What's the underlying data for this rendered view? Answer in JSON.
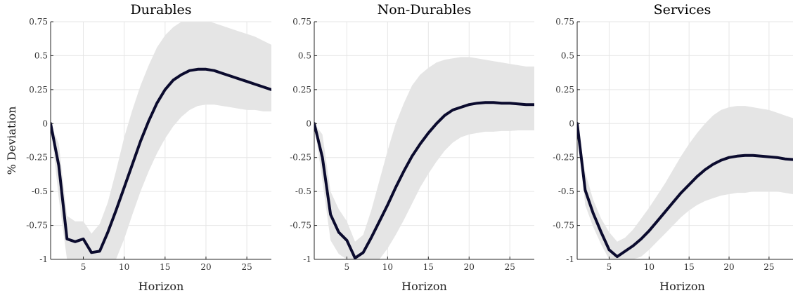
{
  "chart_data": [
    {
      "type": "line",
      "title": "Durables",
      "xlabel": "Horizon",
      "ylabel": "% Deviation",
      "xlim": [
        1,
        28
      ],
      "ylim": [
        -1,
        0.75
      ],
      "xticks": [
        5,
        10,
        15,
        20,
        25
      ],
      "xtick_labels": [
        "5",
        "10",
        "15",
        "20",
        "25"
      ],
      "yticks": [
        -1,
        -0.75,
        -0.5,
        -0.25,
        0,
        0.25,
        0.5,
        0.75
      ],
      "ytick_labels": [
        "-1",
        "-0.75",
        "-0.5",
        "-0.25",
        "0",
        "0.25",
        "0.5",
        "0.75"
      ],
      "grid": true,
      "x": [
        1,
        2,
        3,
        4,
        5,
        6,
        7,
        8,
        9,
        10,
        11,
        12,
        13,
        14,
        15,
        16,
        17,
        18,
        19,
        20,
        21,
        22,
        23,
        24,
        25,
        26,
        27,
        28
      ],
      "series": [
        {
          "values": [
            0,
            -0.31,
            -0.85,
            -0.87,
            -0.85,
            -0.95,
            -0.94,
            -0.8,
            -0.64,
            -0.47,
            -0.3,
            -0.13,
            0.02,
            0.15,
            0.25,
            0.32,
            0.36,
            0.39,
            0.4,
            0.4,
            0.39,
            0.37,
            0.35,
            0.33,
            0.31,
            0.29,
            0.27,
            0.25
          ],
          "lower": [
            0,
            -0.55,
            -1.0,
            -1.0,
            -1.0,
            -1.0,
            -1.0,
            -1.0,
            -1.0,
            -0.85,
            -0.67,
            -0.5,
            -0.35,
            -0.22,
            -0.11,
            -0.02,
            0.05,
            0.1,
            0.13,
            0.14,
            0.14,
            0.13,
            0.12,
            0.11,
            0.1,
            0.1,
            0.09,
            0.09
          ],
          "upper": [
            0,
            -0.15,
            -0.68,
            -0.72,
            -0.72,
            -0.81,
            -0.74,
            -0.58,
            -0.35,
            -0.1,
            0.1,
            0.28,
            0.43,
            0.56,
            0.65,
            0.71,
            0.75,
            0.77,
            0.77,
            0.76,
            0.74,
            0.72,
            0.7,
            0.68,
            0.66,
            0.64,
            0.61,
            0.58
          ]
        }
      ]
    },
    {
      "type": "line",
      "title": "Non-Durables",
      "xlabel": "Horizon",
      "ylabel": "",
      "xlim": [
        1,
        28
      ],
      "ylim": [
        -1,
        0.75
      ],
      "xticks": [
        5,
        10,
        15,
        20,
        25
      ],
      "xtick_labels": [
        "5",
        "10",
        "15",
        "20",
        "25"
      ],
      "yticks": [
        -1,
        -0.75,
        -0.5,
        -0.25,
        0,
        0.25,
        0.5,
        0.75
      ],
      "ytick_labels": [
        "-1",
        "-0.75",
        "-0.5",
        "-0.25",
        "0",
        "0.25",
        "0.5",
        "0.75"
      ],
      "grid": true,
      "x": [
        1,
        2,
        3,
        4,
        5,
        6,
        7,
        8,
        9,
        10,
        11,
        12,
        13,
        14,
        15,
        16,
        17,
        18,
        19,
        20,
        21,
        22,
        23,
        24,
        25,
        26,
        27,
        28
      ],
      "series": [
        {
          "values": [
            0,
            -0.25,
            -0.67,
            -0.8,
            -0.86,
            -0.99,
            -0.95,
            -0.84,
            -0.72,
            -0.6,
            -0.47,
            -0.35,
            -0.24,
            -0.15,
            -0.07,
            0.0,
            0.06,
            0.1,
            0.12,
            0.14,
            0.15,
            0.155,
            0.155,
            0.15,
            0.15,
            0.145,
            0.14,
            0.14
          ],
          "lower": [
            0,
            -0.42,
            -0.86,
            -0.96,
            -1.0,
            -1.0,
            -1.0,
            -1.0,
            -1.0,
            -0.92,
            -0.82,
            -0.71,
            -0.59,
            -0.47,
            -0.37,
            -0.28,
            -0.2,
            -0.14,
            -0.1,
            -0.08,
            -0.07,
            -0.06,
            -0.06,
            -0.055,
            -0.055,
            -0.05,
            -0.05,
            -0.05
          ],
          "upper": [
            0,
            -0.08,
            -0.5,
            -0.63,
            -0.72,
            -0.87,
            -0.82,
            -0.64,
            -0.42,
            -0.2,
            0.0,
            0.15,
            0.28,
            0.36,
            0.41,
            0.45,
            0.47,
            0.48,
            0.49,
            0.49,
            0.48,
            0.47,
            0.46,
            0.45,
            0.44,
            0.43,
            0.42,
            0.42
          ]
        }
      ]
    },
    {
      "type": "line",
      "title": "Services",
      "xlabel": "Horizon",
      "ylabel": "",
      "xlim": [
        1,
        28
      ],
      "ylim": [
        -1,
        0.75
      ],
      "xticks": [
        5,
        10,
        15,
        20,
        25
      ],
      "xtick_labels": [
        "5",
        "10",
        "15",
        "20",
        "25"
      ],
      "yticks": [
        -1,
        -0.75,
        -0.5,
        -0.25,
        0,
        0.25,
        0.5,
        0.75
      ],
      "ytick_labels": [
        "-1",
        "-0.75",
        "-0.5",
        "-0.25",
        "0",
        "0.25",
        "0.5",
        "0.75"
      ],
      "grid": true,
      "x": [
        1,
        2,
        3,
        4,
        5,
        6,
        7,
        8,
        9,
        10,
        11,
        12,
        13,
        14,
        15,
        16,
        17,
        18,
        19,
        20,
        21,
        22,
        23,
        24,
        25,
        26,
        27,
        28
      ],
      "series": [
        {
          "values": [
            0,
            -0.49,
            -0.66,
            -0.8,
            -0.93,
            -0.98,
            -0.94,
            -0.9,
            -0.85,
            -0.79,
            -0.72,
            -0.65,
            -0.58,
            -0.51,
            -0.45,
            -0.39,
            -0.34,
            -0.3,
            -0.27,
            -0.25,
            -0.24,
            -0.235,
            -0.235,
            -0.24,
            -0.245,
            -0.25,
            -0.26,
            -0.265
          ],
          "lower": [
            0,
            -0.6,
            -0.76,
            -0.89,
            -1.0,
            -1.0,
            -1.0,
            -1.0,
            -0.98,
            -0.93,
            -0.87,
            -0.81,
            -0.75,
            -0.69,
            -0.64,
            -0.6,
            -0.57,
            -0.55,
            -0.53,
            -0.52,
            -0.51,
            -0.51,
            -0.5,
            -0.5,
            -0.5,
            -0.5,
            -0.51,
            -0.52
          ],
          "upper": [
            0,
            -0.36,
            -0.56,
            -0.7,
            -0.8,
            -0.87,
            -0.84,
            -0.78,
            -0.7,
            -0.62,
            -0.53,
            -0.44,
            -0.34,
            -0.24,
            -0.15,
            -0.07,
            0.0,
            0.06,
            0.1,
            0.12,
            0.13,
            0.13,
            0.12,
            0.11,
            0.1,
            0.08,
            0.06,
            0.04
          ]
        }
      ]
    }
  ],
  "colors": {
    "line": "#0b0b2e",
    "band": "#e5e5e5"
  }
}
